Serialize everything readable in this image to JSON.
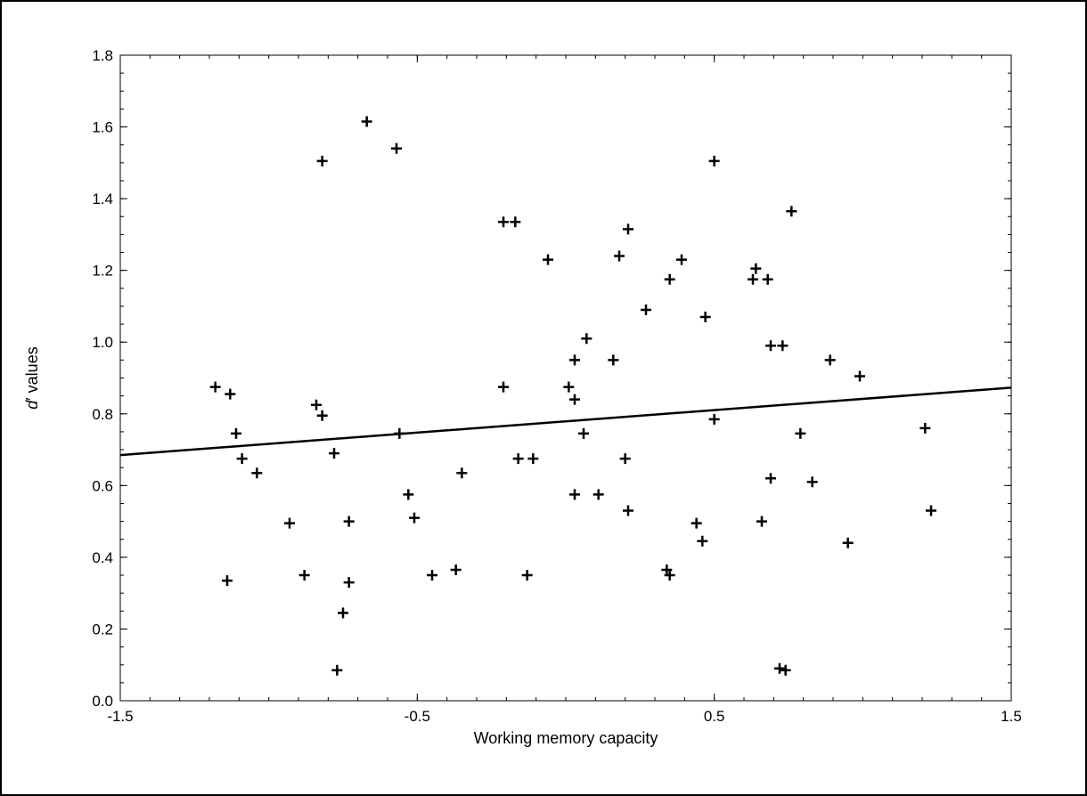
{
  "chart_data": {
    "type": "scatter",
    "title": "",
    "xlabel": "Working memory capacity",
    "ylabel": {
      "prefix": "d",
      "mark": "′",
      "suffix": " values"
    },
    "xlim": [
      -1.5,
      1.5
    ],
    "ylim": [
      0.0,
      1.8
    ],
    "x_ticks": [
      -1.5,
      -0.5,
      0.5,
      1.5
    ],
    "x_tick_labels": [
      "-1.5",
      "-0.5",
      "0.5",
      "1.5"
    ],
    "y_ticks": [
      0.0,
      0.2,
      0.4,
      0.6,
      0.8,
      1.0,
      1.2,
      1.4,
      1.6,
      1.8
    ],
    "y_tick_labels": [
      "0.0",
      "0.2",
      "0.4",
      "0.6",
      "0.8",
      "1.0",
      "1.2",
      "1.4",
      "1.6",
      "1.8"
    ],
    "x_minor_step": 0.1,
    "y_minor_step": 0.05,
    "grid": false,
    "legend": "none",
    "marker": "plus",
    "colors": {
      "points": "#000000",
      "fit_line": "#000000",
      "axes": "#000000"
    },
    "fit_line": {
      "x": [
        -1.5,
        1.5
      ],
      "y": [
        0.685,
        0.873
      ]
    },
    "points": [
      {
        "x": -1.18,
        "y": 0.875
      },
      {
        "x": -1.13,
        "y": 0.855
      },
      {
        "x": -1.11,
        "y": 0.745
      },
      {
        "x": -1.09,
        "y": 0.675
      },
      {
        "x": -1.04,
        "y": 0.635
      },
      {
        "x": -1.14,
        "y": 0.335
      },
      {
        "x": -0.93,
        "y": 0.495
      },
      {
        "x": -0.88,
        "y": 0.35
      },
      {
        "x": -0.84,
        "y": 0.825
      },
      {
        "x": -0.82,
        "y": 0.795
      },
      {
        "x": -0.82,
        "y": 1.505
      },
      {
        "x": -0.78,
        "y": 0.69
      },
      {
        "x": -0.75,
        "y": 0.245
      },
      {
        "x": -0.77,
        "y": 0.085
      },
      {
        "x": -0.73,
        "y": 0.5
      },
      {
        "x": -0.73,
        "y": 0.33
      },
      {
        "x": -0.67,
        "y": 1.615
      },
      {
        "x": -0.57,
        "y": 1.54
      },
      {
        "x": -0.56,
        "y": 0.745
      },
      {
        "x": -0.53,
        "y": 0.575
      },
      {
        "x": -0.51,
        "y": 0.51
      },
      {
        "x": -0.45,
        "y": 0.35
      },
      {
        "x": -0.37,
        "y": 0.365
      },
      {
        "x": -0.35,
        "y": 0.635
      },
      {
        "x": -0.21,
        "y": 1.335
      },
      {
        "x": -0.17,
        "y": 1.335
      },
      {
        "x": -0.21,
        "y": 0.875
      },
      {
        "x": -0.16,
        "y": 0.675
      },
      {
        "x": -0.11,
        "y": 0.675
      },
      {
        "x": -0.13,
        "y": 0.35
      },
      {
        "x": -0.06,
        "y": 1.23
      },
      {
        "x": 0.01,
        "y": 0.875
      },
      {
        "x": 0.03,
        "y": 0.95
      },
      {
        "x": 0.03,
        "y": 0.84
      },
      {
        "x": 0.03,
        "y": 0.575
      },
      {
        "x": 0.07,
        "y": 1.01
      },
      {
        "x": 0.06,
        "y": 0.745
      },
      {
        "x": 0.11,
        "y": 0.575
      },
      {
        "x": 0.16,
        "y": 0.95
      },
      {
        "x": 0.18,
        "y": 1.24
      },
      {
        "x": 0.21,
        "y": 1.315
      },
      {
        "x": 0.2,
        "y": 0.675
      },
      {
        "x": 0.21,
        "y": 0.53
      },
      {
        "x": 0.27,
        "y": 1.09
      },
      {
        "x": 0.35,
        "y": 1.175
      },
      {
        "x": 0.39,
        "y": 1.23
      },
      {
        "x": 0.34,
        "y": 0.365
      },
      {
        "x": 0.35,
        "y": 0.35
      },
      {
        "x": 0.47,
        "y": 1.07
      },
      {
        "x": 0.5,
        "y": 1.505
      },
      {
        "x": 0.5,
        "y": 0.785
      },
      {
        "x": 0.44,
        "y": 0.495
      },
      {
        "x": 0.46,
        "y": 0.445
      },
      {
        "x": 0.63,
        "y": 1.175
      },
      {
        "x": 0.64,
        "y": 1.205
      },
      {
        "x": 0.68,
        "y": 1.175
      },
      {
        "x": 0.69,
        "y": 0.99
      },
      {
        "x": 0.73,
        "y": 0.99
      },
      {
        "x": 0.76,
        "y": 1.365
      },
      {
        "x": 0.69,
        "y": 0.62
      },
      {
        "x": 0.66,
        "y": 0.5
      },
      {
        "x": 0.79,
        "y": 0.745
      },
      {
        "x": 0.83,
        "y": 0.61
      },
      {
        "x": 0.72,
        "y": 0.09
      },
      {
        "x": 0.74,
        "y": 0.085
      },
      {
        "x": 0.89,
        "y": 0.95
      },
      {
        "x": 0.99,
        "y": 0.905
      },
      {
        "x": 0.95,
        "y": 0.44
      },
      {
        "x": 1.21,
        "y": 0.76
      },
      {
        "x": 1.23,
        "y": 0.53
      }
    ]
  }
}
